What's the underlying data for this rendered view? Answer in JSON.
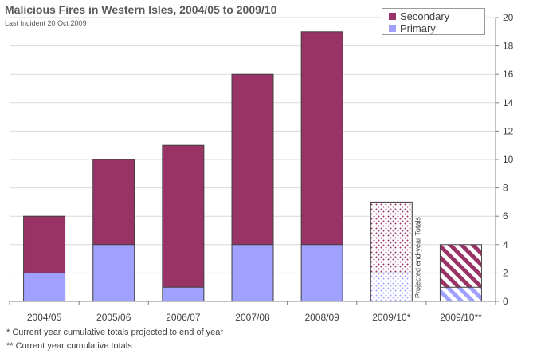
{
  "chart_data": {
    "type": "bar",
    "stacked": true,
    "title": "Malicious Fires in Western Isles, 2004/05 to 2009/10",
    "subtitle": "Last Incident 20 Oct 2009",
    "categories": [
      "2004/05",
      "2005/06",
      "2006/07",
      "2007/08",
      "2008/09",
      "2009/10*",
      "2009/10**"
    ],
    "series": [
      {
        "name": "Primary",
        "values": [
          2,
          4,
          1,
          4,
          4,
          2,
          1
        ],
        "color": "#a0a0ff"
      },
      {
        "name": "Secondary",
        "values": [
          4,
          6,
          10,
          12,
          15,
          5,
          3
        ],
        "color": "#993366"
      }
    ],
    "bar_styles": [
      "solid",
      "solid",
      "solid",
      "solid",
      "solid",
      "dotted",
      "striped"
    ],
    "annotation": "Projected end-year Totals",
    "ylim": [
      0,
      20
    ],
    "yticks": [
      0,
      2,
      4,
      6,
      8,
      10,
      12,
      14,
      16,
      18,
      20
    ],
    "y_axis_side": "right",
    "grid": true,
    "legend_position": "top-right"
  },
  "footnotes": [
    "* Current year cumulative totals projected to end of year",
    "** Current year cumulative totals"
  ]
}
